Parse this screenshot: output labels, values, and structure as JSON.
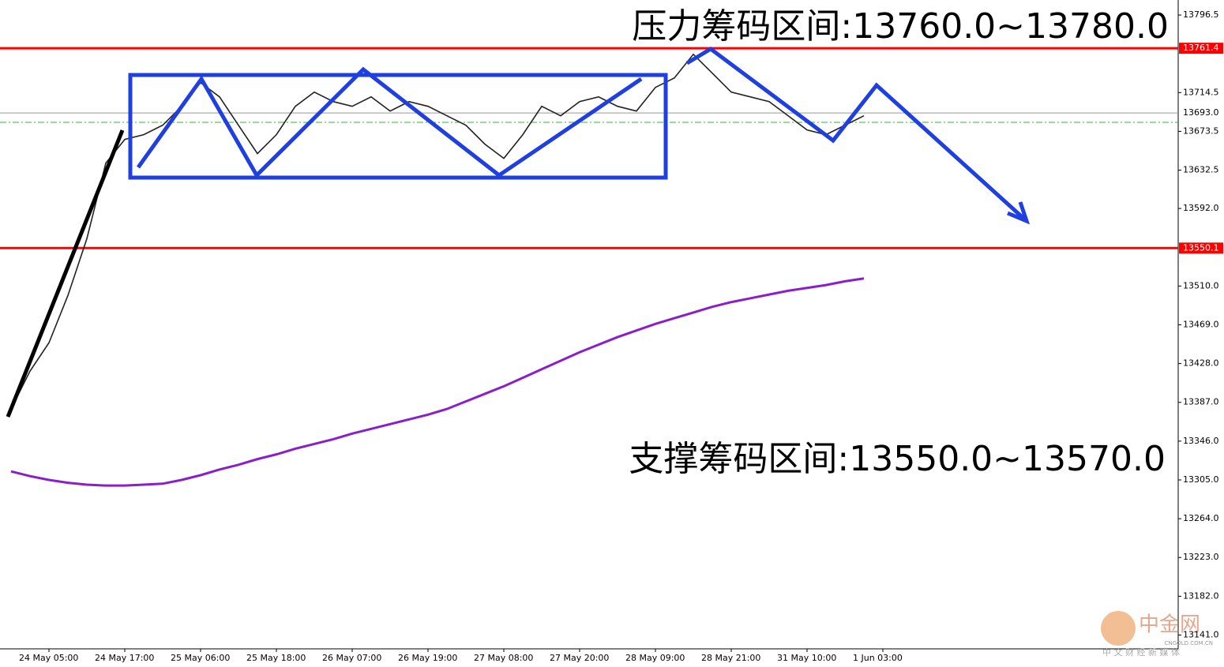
{
  "chart_data": {
    "type": "line",
    "annotations": [
      "压力筹码区间:13760.0~13780.0",
      "支撑筹码区间:13550.0~13570.0"
    ],
    "watermark": {
      "brand": "中金网",
      "domain": "CNGOLD.COM.CN",
      "slogan": "中 文 财 经 新 媒 体"
    },
    "categories": [
      null,
      null,
      "24 May 05:00",
      null,
      null,
      null,
      "24 May 17:00",
      null,
      null,
      null,
      "25 May 06:00",
      null,
      null,
      null,
      "25 May 18:00",
      null,
      null,
      null,
      "26 May 07:00",
      null,
      null,
      null,
      "26 May 19:00",
      null,
      null,
      null,
      "27 May 08:00",
      null,
      null,
      null,
      "27 May 20:00",
      null,
      null,
      null,
      "28 May 09:00",
      null,
      null,
      null,
      "28 May 21:00",
      null,
      null,
      null,
      "31 May 10:00",
      null,
      null,
      null,
      "1 Jun 03:00"
    ],
    "series": [
      {
        "color": "#222222",
        "values": [
          13380,
          13420,
          13450,
          13500,
          13560,
          13640,
          13665,
          13670,
          13680,
          13700,
          13725,
          13710,
          13680,
          13650,
          13670,
          13700,
          13715,
          13705,
          13700,
          13710,
          13695,
          13705,
          13700,
          13690,
          13680,
          13660,
          13645,
          13670,
          13700,
          13690,
          13705,
          13710,
          13700,
          13695,
          13720,
          13730,
          13755,
          13735,
          13715,
          13710,
          13705,
          13690,
          13675,
          13670,
          13680,
          13690,
          null
        ]
      },
      {
        "color": "#8a1fc9",
        "values": [
          13314,
          13309,
          13305,
          13302,
          13300,
          13299,
          13299,
          13300,
          13301,
          13305,
          13310,
          13316,
          13321,
          13327,
          13332,
          13338,
          13343,
          13348,
          13354,
          13359,
          13364,
          13369,
          13374,
          13380,
          13388,
          13396,
          13404,
          13413,
          13422,
          13431,
          13440,
          13448,
          13456,
          13463,
          13470,
          13476,
          13482,
          13488,
          13493,
          13497,
          13501,
          13505,
          13508,
          13511,
          13515,
          13518,
          null
        ]
      }
    ],
    "ylim": [
      13126.4,
      13812.4
    ],
    "yticks": [
      13796.5,
      13714.5,
      13673.5,
      13632.5,
      {
        "value": 13592,
        "label": "13592.0"
      },
      {
        "value": 13510,
        "label": "13510.0"
      },
      {
        "value": 13469,
        "label": "13469.0"
      },
      {
        "value": 13428,
        "label": "13428.0"
      },
      {
        "value": 13387,
        "label": "13387.0"
      },
      {
        "value": 13346,
        "label": "13346.0"
      },
      {
        "value": 13305,
        "label": "13305.0"
      },
      {
        "value": 13264,
        "label": "13264.0"
      },
      {
        "value": 13223,
        "label": "13223.0"
      },
      {
        "value": 13182,
        "label": "13182.0"
      },
      {
        "value": 13141,
        "label": "13141.0"
      }
    ],
    "resistance_level": 13761.4,
    "support_level": 13550.1,
    "current_price": {
      "value": 13693,
      "label": "13693.0"
    },
    "level_color": "#ff0000"
  }
}
